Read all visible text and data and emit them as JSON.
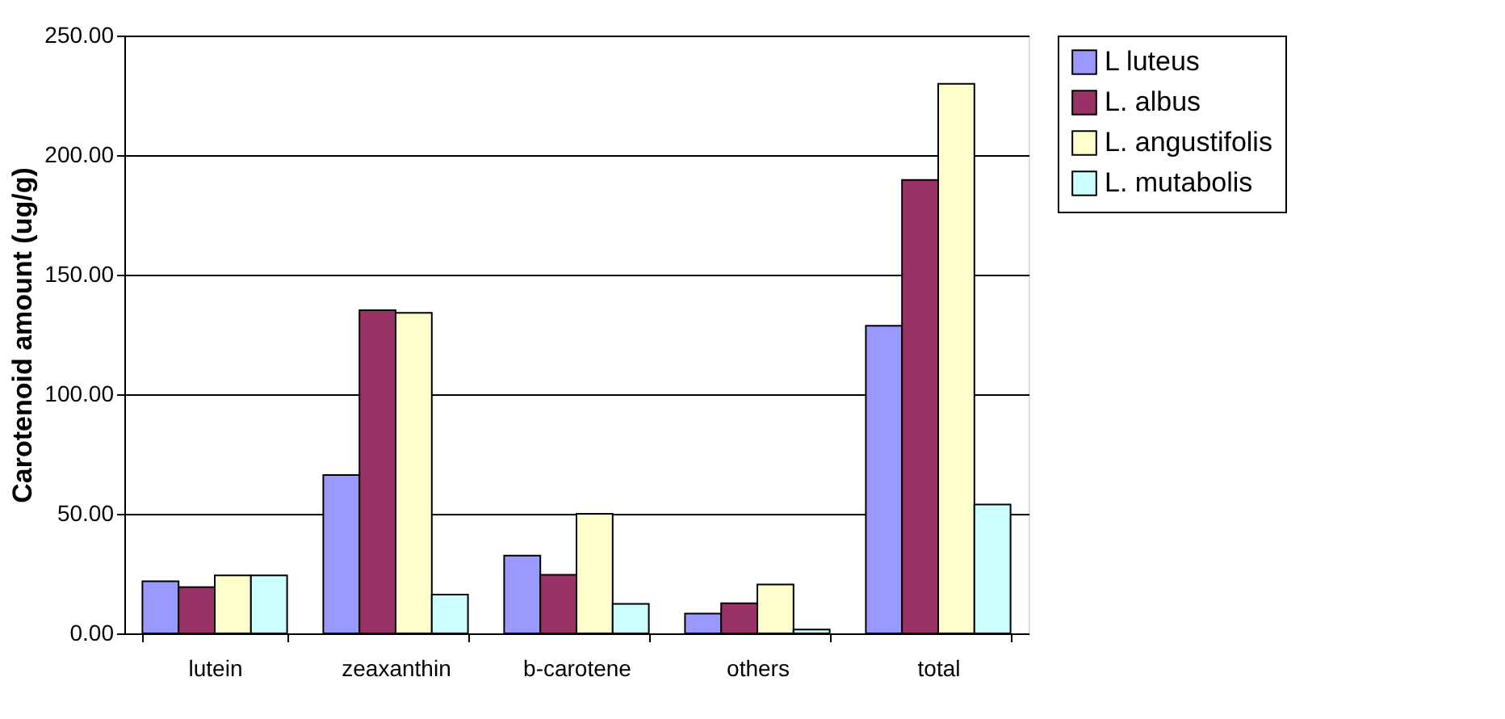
{
  "chart_data": {
    "type": "bar",
    "ylabel": "Carotenoid amount (ug/g)",
    "categories": [
      "lutein",
      "zeaxanthin",
      "b-carotene",
      "others",
      "total"
    ],
    "series": [
      {
        "name": "L luteus",
        "color": "#9999ff",
        "values": [
          21.8,
          66.2,
          32.5,
          8.3,
          128.6
        ]
      },
      {
        "name": "L. albus",
        "color": "#993366",
        "values": [
          19.3,
          135.1,
          24.5,
          12.6,
          189.6
        ]
      },
      {
        "name": "L. angustifolis",
        "color": "#ffffcc",
        "values": [
          24.2,
          134.0,
          50.0,
          20.4,
          229.8
        ]
      },
      {
        "name": "L. mutabolis",
        "color": "#ccffff",
        "values": [
          24.2,
          16.2,
          12.3,
          1.6,
          53.9
        ]
      }
    ],
    "ylim": [
      0,
      250
    ],
    "yticks": [
      {
        "value": 0,
        "label": "0.00"
      },
      {
        "value": 50,
        "label": "50.00"
      },
      {
        "value": 100,
        "label": "100.00"
      },
      {
        "value": 150,
        "label": "150.00"
      },
      {
        "value": 200,
        "label": "200.00"
      },
      {
        "value": 250,
        "label": "250.00"
      }
    ],
    "grid": "y",
    "legend": "right"
  }
}
